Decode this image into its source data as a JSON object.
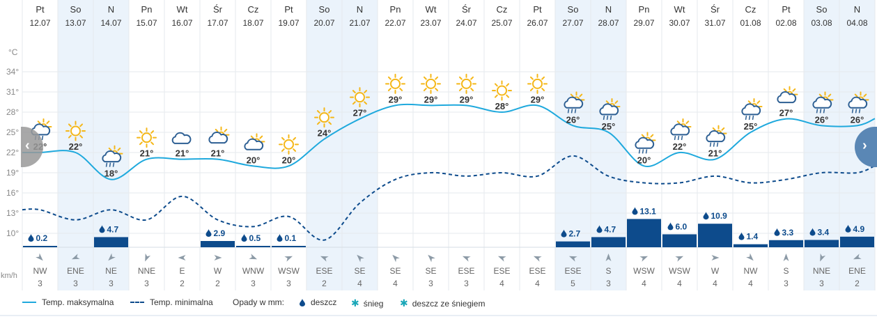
{
  "chart_data": {
    "type": "line",
    "y_axis_unit": "°C",
    "y_ticks": [
      "34°",
      "31°",
      "28°",
      "25°",
      "22°",
      "19°",
      "16°",
      "13°",
      "10°"
    ],
    "wind_unit": "km/h",
    "days": [
      {
        "dow": "Pt",
        "date": "12.07",
        "max": 22,
        "min": 13.5,
        "icon": "sun-cloud-rain-icon",
        "precip": "0.2",
        "precip_mm": 0.2,
        "wind_dir": "NW",
        "wind_speed": "3"
      },
      {
        "dow": "So",
        "date": "13.07",
        "max": 22,
        "min": 12,
        "icon": "sun-icon",
        "precip": "",
        "precip_mm": 0,
        "wind_dir": "ENE",
        "wind_speed": "3"
      },
      {
        "dow": "N",
        "date": "14.07",
        "max": 18,
        "min": 13.5,
        "icon": "sun-cloud-rain-icon",
        "precip": "4.7",
        "precip_mm": 4.7,
        "wind_dir": "NE",
        "wind_speed": "3"
      },
      {
        "dow": "Pn",
        "date": "15.07",
        "max": 21,
        "min": 12,
        "icon": "sun-icon",
        "precip": "",
        "precip_mm": 0,
        "wind_dir": "NNE",
        "wind_speed": "3"
      },
      {
        "dow": "Wt",
        "date": "16.07",
        "max": 21,
        "min": 15.5,
        "icon": "cloud-icon",
        "precip": "",
        "precip_mm": 0,
        "wind_dir": "E",
        "wind_speed": "2"
      },
      {
        "dow": "Śr",
        "date": "17.07",
        "max": 21,
        "min": 12,
        "icon": "sun-cloud-icon",
        "precip": "2.9",
        "precip_mm": 2.9,
        "wind_dir": "W",
        "wind_speed": "2"
      },
      {
        "dow": "Cz",
        "date": "18.07",
        "max": 20,
        "min": 11,
        "icon": "sun-cloud-icon",
        "precip": "0.5",
        "precip_mm": 0.5,
        "wind_dir": "WNW",
        "wind_speed": "3"
      },
      {
        "dow": "Pt",
        "date": "19.07",
        "max": 20,
        "min": 12.5,
        "icon": "sun-icon",
        "precip": "0.1",
        "precip_mm": 0.1,
        "wind_dir": "WSW",
        "wind_speed": "3"
      },
      {
        "dow": "So",
        "date": "20.07",
        "max": 24,
        "min": 9,
        "icon": "sun-icon",
        "precip": "",
        "precip_mm": 0,
        "wind_dir": "ESE",
        "wind_speed": "2"
      },
      {
        "dow": "N",
        "date": "21.07",
        "max": 27,
        "min": 14.5,
        "icon": "sun-icon",
        "precip": "",
        "precip_mm": 0,
        "wind_dir": "SE",
        "wind_speed": "4"
      },
      {
        "dow": "Pn",
        "date": "22.07",
        "max": 29,
        "min": 18,
        "icon": "sun-icon",
        "precip": "",
        "precip_mm": 0,
        "wind_dir": "SE",
        "wind_speed": "4"
      },
      {
        "dow": "Wt",
        "date": "23.07",
        "max": 29,
        "min": 19,
        "icon": "sun-icon",
        "precip": "",
        "precip_mm": 0,
        "wind_dir": "SE",
        "wind_speed": "3"
      },
      {
        "dow": "Śr",
        "date": "24.07",
        "max": 29,
        "min": 18.5,
        "icon": "sun-icon",
        "precip": "",
        "precip_mm": 0,
        "wind_dir": "ESE",
        "wind_speed": "3"
      },
      {
        "dow": "Cz",
        "date": "25.07",
        "max": 28,
        "min": 19,
        "icon": "sun-icon",
        "precip": "",
        "precip_mm": 0,
        "wind_dir": "ESE",
        "wind_speed": "4"
      },
      {
        "dow": "Pt",
        "date": "26.07",
        "max": 29,
        "min": 18.5,
        "icon": "sun-icon",
        "precip": "",
        "precip_mm": 0,
        "wind_dir": "ESE",
        "wind_speed": "4"
      },
      {
        "dow": "So",
        "date": "27.07",
        "max": 26,
        "min": 21.5,
        "icon": "sun-cloud-rain-icon",
        "precip": "2.7",
        "precip_mm": 2.7,
        "wind_dir": "ESE",
        "wind_speed": "5"
      },
      {
        "dow": "N",
        "date": "28.07",
        "max": 25,
        "min": 18.5,
        "icon": "sun-cloud-rain-icon",
        "precip": "4.7",
        "precip_mm": 4.7,
        "wind_dir": "S",
        "wind_speed": "3"
      },
      {
        "dow": "Pn",
        "date": "29.07",
        "max": 20,
        "min": 17.5,
        "icon": "sun-cloud-rain-icon",
        "precip": "13.1",
        "precip_mm": 13.1,
        "wind_dir": "WSW",
        "wind_speed": "4"
      },
      {
        "dow": "Wt",
        "date": "30.07",
        "max": 22,
        "min": 17.5,
        "icon": "sun-cloud-rain-icon",
        "precip": "6.0",
        "precip_mm": 6.0,
        "wind_dir": "WSW",
        "wind_speed": "4"
      },
      {
        "dow": "Śr",
        "date": "31.07",
        "max": 21,
        "min": 18.5,
        "icon": "sun-cloud-rain-icon",
        "precip": "10.9",
        "precip_mm": 10.9,
        "wind_dir": "W",
        "wind_speed": "4"
      },
      {
        "dow": "Cz",
        "date": "01.08",
        "max": 25,
        "min": 17.5,
        "icon": "sun-cloud-rain-icon",
        "precip": "1.4",
        "precip_mm": 1.4,
        "wind_dir": "NW",
        "wind_speed": "4"
      },
      {
        "dow": "Pt",
        "date": "02.08",
        "max": 27,
        "min": 18,
        "icon": "sun-cloud-icon",
        "precip": "3.3",
        "precip_mm": 3.3,
        "wind_dir": "S",
        "wind_speed": "3"
      },
      {
        "dow": "So",
        "date": "03.08",
        "max": 26,
        "min": 19,
        "icon": "sun-cloud-rain-icon",
        "precip": "3.4",
        "precip_mm": 3.4,
        "wind_dir": "NNE",
        "wind_speed": "3"
      },
      {
        "dow": "N",
        "date": "04.08",
        "max": 26,
        "min": 19,
        "icon": "sun-cloud-rain-icon",
        "precip": "4.9",
        "precip_mm": 4.9,
        "wind_dir": "ENE",
        "wind_speed": "2"
      }
    ],
    "weekend_indices": [
      1,
      2,
      8,
      9,
      15,
      16,
      22,
      23
    ],
    "colors": {
      "max_line": "#1fa9dd",
      "min_line": "#0d4b8c",
      "precip_bar": "#0d4b8c",
      "weekend_bg": "#ebf3fb",
      "grid": "#e6eaee",
      "sun": "#f5b718",
      "cloud": "#2d5f93"
    }
  },
  "legend": {
    "max_label": "Temp. maksymalna",
    "min_label": "Temp. minimalna",
    "precip_title": "Opady w mm:",
    "rain_label": "deszcz",
    "snow_label": "śnieg",
    "mixed_label": "deszcz ze śniegiem"
  },
  "nav": {
    "prev_glyph": "‹",
    "next_glyph": "›"
  }
}
